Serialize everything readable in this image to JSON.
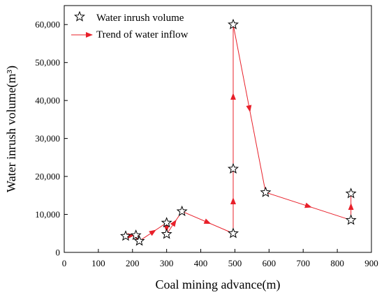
{
  "chart_data": {
    "type": "scatter",
    "xlabel": "Coal mining advance(m)",
    "ylabel": "Water inrush volume(m³)",
    "xlim": [
      0,
      900
    ],
    "ylim": [
      0,
      65000
    ],
    "x_ticks": [
      0,
      100,
      200,
      300,
      400,
      500,
      600,
      700,
      800,
      900
    ],
    "x_tick_labels": [
      "0",
      "100",
      "200",
      "300",
      "400",
      "500",
      "600",
      "700",
      "800",
      "900"
    ],
    "y_ticks": [
      0,
      10000,
      20000,
      30000,
      40000,
      50000,
      60000
    ],
    "y_tick_labels": [
      "0",
      "10,000",
      "20,000",
      "30,000",
      "40,000",
      "50,000",
      "60,000"
    ],
    "grid": false,
    "legend_position": "top-left",
    "series": [
      {
        "name": "Water inrush volume",
        "marker": "star",
        "color": "#000000",
        "points": [
          [
            180,
            4300
          ],
          [
            210,
            4500
          ],
          [
            220,
            3000
          ],
          [
            300,
            4800
          ],
          [
            300,
            7800
          ],
          [
            345,
            10800
          ],
          [
            495,
            5000
          ],
          [
            495,
            22000
          ],
          [
            495,
            60000
          ],
          [
            590,
            15800
          ],
          [
            840,
            8500
          ],
          [
            840,
            15500
          ]
        ]
      },
      {
        "name": "Trend of water inflow",
        "line_type": "arrow",
        "color": "#e8202a",
        "path": [
          [
            180,
            4300
          ],
          [
            210,
            4500
          ],
          [
            220,
            3000
          ],
          [
            300,
            7800
          ],
          [
            300,
            4800
          ],
          [
            345,
            10800
          ],
          [
            495,
            5000
          ],
          [
            495,
            22000
          ],
          [
            495,
            60000
          ],
          [
            590,
            15800
          ],
          [
            840,
            8500
          ],
          [
            840,
            15500
          ]
        ]
      }
    ]
  }
}
